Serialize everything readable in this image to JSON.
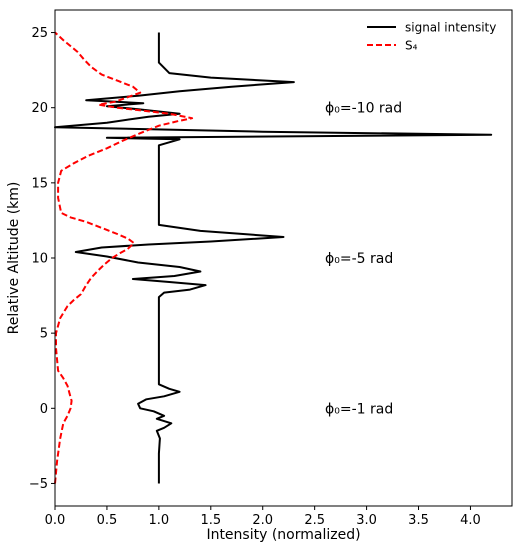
{
  "chart_data": {
    "type": "line",
    "xlabel": "Intensity (normalized)",
    "ylabel": "Relative Altitude (km)",
    "xlim": [
      0.0,
      4.4
    ],
    "ylim": [
      -6.5,
      26.5
    ],
    "xticks": [
      0.0,
      0.5,
      1.0,
      1.5,
      2.0,
      2.5,
      3.0,
      3.5,
      4.0
    ],
    "xtick_labels": [
      "0.0",
      "0.5",
      "1.0",
      "1.5",
      "2.0",
      "2.5",
      "3.0",
      "3.5",
      "4.0"
    ],
    "yticks": [
      -5,
      0,
      5,
      10,
      15,
      20,
      25
    ],
    "ytick_labels": [
      "−5",
      "0",
      "5",
      "10",
      "15",
      "20",
      "25"
    ],
    "grid": false,
    "legend_position": "top-right",
    "series": [
      {
        "name": "signal intensity",
        "color": "#000000",
        "dash": "solid",
        "points": [
          [
            1.0,
            -5.0
          ],
          [
            1.0,
            -4.0
          ],
          [
            1.0,
            -3.0
          ],
          [
            1.01,
            -2.0
          ],
          [
            0.98,
            -1.5
          ],
          [
            1.05,
            -1.3
          ],
          [
            1.12,
            -1.0
          ],
          [
            0.98,
            -0.7
          ],
          [
            1.05,
            -0.5
          ],
          [
            0.95,
            -0.2
          ],
          [
            0.82,
            0.0
          ],
          [
            0.8,
            0.3
          ],
          [
            0.88,
            0.6
          ],
          [
            1.05,
            0.8
          ],
          [
            1.2,
            1.1
          ],
          [
            1.1,
            1.3
          ],
          [
            1.0,
            1.6
          ],
          [
            1.0,
            2.0
          ],
          [
            1.0,
            3.0
          ],
          [
            1.0,
            4.0
          ],
          [
            1.0,
            5.0
          ],
          [
            1.0,
            6.0
          ],
          [
            1.0,
            6.8
          ],
          [
            1.0,
            7.4
          ],
          [
            1.05,
            7.7
          ],
          [
            1.3,
            7.9
          ],
          [
            1.45,
            8.2
          ],
          [
            1.1,
            8.4
          ],
          [
            0.75,
            8.6
          ],
          [
            1.15,
            8.8
          ],
          [
            1.4,
            9.1
          ],
          [
            1.2,
            9.4
          ],
          [
            0.8,
            9.7
          ],
          [
            0.5,
            10.1
          ],
          [
            0.2,
            10.4
          ],
          [
            0.45,
            10.7
          ],
          [
            0.9,
            10.9
          ],
          [
            1.5,
            11.1
          ],
          [
            2.2,
            11.4
          ],
          [
            1.4,
            11.8
          ],
          [
            1.0,
            12.2
          ],
          [
            1.0,
            13.0
          ],
          [
            1.0,
            14.0
          ],
          [
            1.0,
            15.0
          ],
          [
            1.0,
            16.0
          ],
          [
            1.0,
            17.0
          ],
          [
            1.0,
            17.5
          ],
          [
            1.2,
            17.9
          ],
          [
            0.5,
            18.0
          ],
          [
            4.2,
            18.2
          ],
          [
            2.0,
            18.4
          ],
          [
            0.0,
            18.7
          ],
          [
            0.5,
            19.0
          ],
          [
            0.9,
            19.4
          ],
          [
            1.2,
            19.6
          ],
          [
            0.8,
            19.9
          ],
          [
            0.5,
            20.1
          ],
          [
            0.85,
            20.3
          ],
          [
            0.3,
            20.5
          ],
          [
            0.8,
            20.8
          ],
          [
            1.2,
            21.1
          ],
          [
            1.7,
            21.4
          ],
          [
            2.3,
            21.7
          ],
          [
            1.5,
            22.0
          ],
          [
            1.1,
            22.3
          ],
          [
            1.0,
            23.0
          ],
          [
            1.0,
            24.0
          ],
          [
            1.0,
            25.0
          ]
        ]
      },
      {
        "name": "S₄",
        "color": "#ff0000",
        "dash": "dashed",
        "points": [
          [
            0.0,
            -5.0
          ],
          [
            0.02,
            -3.5
          ],
          [
            0.05,
            -2.0
          ],
          [
            0.08,
            -1.0
          ],
          [
            0.12,
            -0.5
          ],
          [
            0.15,
            0.0
          ],
          [
            0.16,
            0.5
          ],
          [
            0.14,
            1.0
          ],
          [
            0.12,
            1.5
          ],
          [
            0.08,
            2.0
          ],
          [
            0.03,
            2.5
          ],
          [
            0.01,
            4.0
          ],
          [
            0.01,
            5.0
          ],
          [
            0.05,
            6.0
          ],
          [
            0.12,
            6.8
          ],
          [
            0.18,
            7.2
          ],
          [
            0.25,
            7.6
          ],
          [
            0.3,
            8.2
          ],
          [
            0.35,
            8.7
          ],
          [
            0.42,
            9.2
          ],
          [
            0.48,
            9.6
          ],
          [
            0.55,
            10.0
          ],
          [
            0.62,
            10.3
          ],
          [
            0.7,
            10.6
          ],
          [
            0.76,
            11.0
          ],
          [
            0.7,
            11.3
          ],
          [
            0.6,
            11.6
          ],
          [
            0.45,
            12.0
          ],
          [
            0.3,
            12.4
          ],
          [
            0.15,
            12.7
          ],
          [
            0.06,
            13.0
          ],
          [
            0.03,
            14.0
          ],
          [
            0.03,
            15.0
          ],
          [
            0.06,
            15.8
          ],
          [
            0.18,
            16.3
          ],
          [
            0.32,
            16.8
          ],
          [
            0.5,
            17.3
          ],
          [
            0.65,
            17.8
          ],
          [
            0.82,
            18.3
          ],
          [
            1.0,
            18.8
          ],
          [
            1.18,
            19.1
          ],
          [
            1.32,
            19.3
          ],
          [
            1.1,
            19.6
          ],
          [
            0.85,
            19.8
          ],
          [
            0.6,
            20.0
          ],
          [
            0.42,
            20.2
          ],
          [
            0.58,
            20.4
          ],
          [
            0.7,
            20.7
          ],
          [
            0.82,
            21.0
          ],
          [
            0.75,
            21.4
          ],
          [
            0.6,
            21.8
          ],
          [
            0.45,
            22.2
          ],
          [
            0.35,
            22.7
          ],
          [
            0.28,
            23.2
          ],
          [
            0.22,
            23.7
          ],
          [
            0.15,
            24.1
          ],
          [
            0.08,
            24.5
          ],
          [
            0.0,
            25.0
          ]
        ]
      }
    ],
    "annotations": [
      {
        "text": "ϕ₀=-10 rad",
        "x": 2.6,
        "y": 20.0
      },
      {
        "text": "ϕ₀=-5 rad",
        "x": 2.6,
        "y": 10.0
      },
      {
        "text": "ϕ₀=-1 rad",
        "x": 2.6,
        "y": 0.0
      }
    ]
  }
}
